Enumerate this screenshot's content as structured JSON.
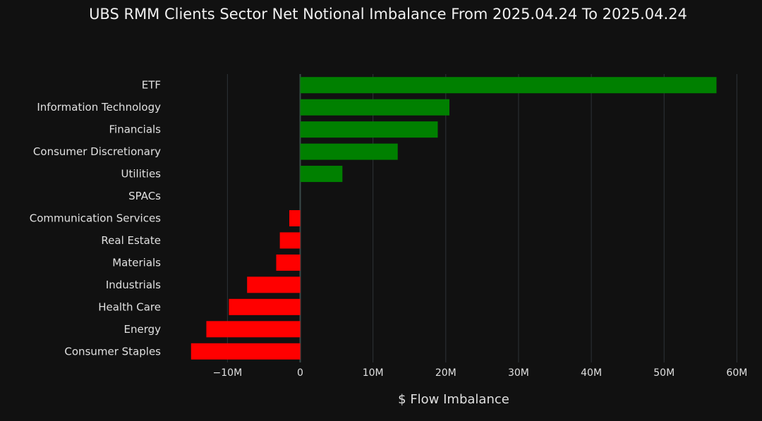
{
  "chart_data": {
    "type": "bar",
    "orientation": "horizontal",
    "title": "UBS RMM Clients Sector Net Notional Imbalance From 2025.04.24 To 2025.04.24",
    "xlabel": "$ Flow Imbalance",
    "ylabel": "",
    "categories": [
      "ETF",
      "Information Technology",
      "Financials",
      "Consumer Discretionary",
      "Utilities",
      "SPACs",
      "Communication Services",
      "Real Estate",
      "Materials",
      "Industrials",
      "Health Care",
      "Energy",
      "Consumer Staples"
    ],
    "values": [
      57.2,
      20.5,
      18.9,
      13.4,
      5.8,
      0,
      -1.5,
      -2.8,
      -3.3,
      -7.3,
      -9.8,
      -12.9,
      -15.0
    ],
    "value_units": "M USD",
    "xlim": [
      -17.5,
      62
    ],
    "xticks": [
      -10,
      0,
      10,
      20,
      30,
      40,
      50,
      60
    ],
    "xtick_labels": [
      "−10M",
      "0",
      "10M",
      "20M",
      "30M",
      "40M",
      "50M",
      "60M"
    ],
    "grid": true,
    "colors": {
      "positive": "#008000",
      "negative": "#ff0000",
      "background": "#111111",
      "grid": "#2e3338"
    }
  }
}
